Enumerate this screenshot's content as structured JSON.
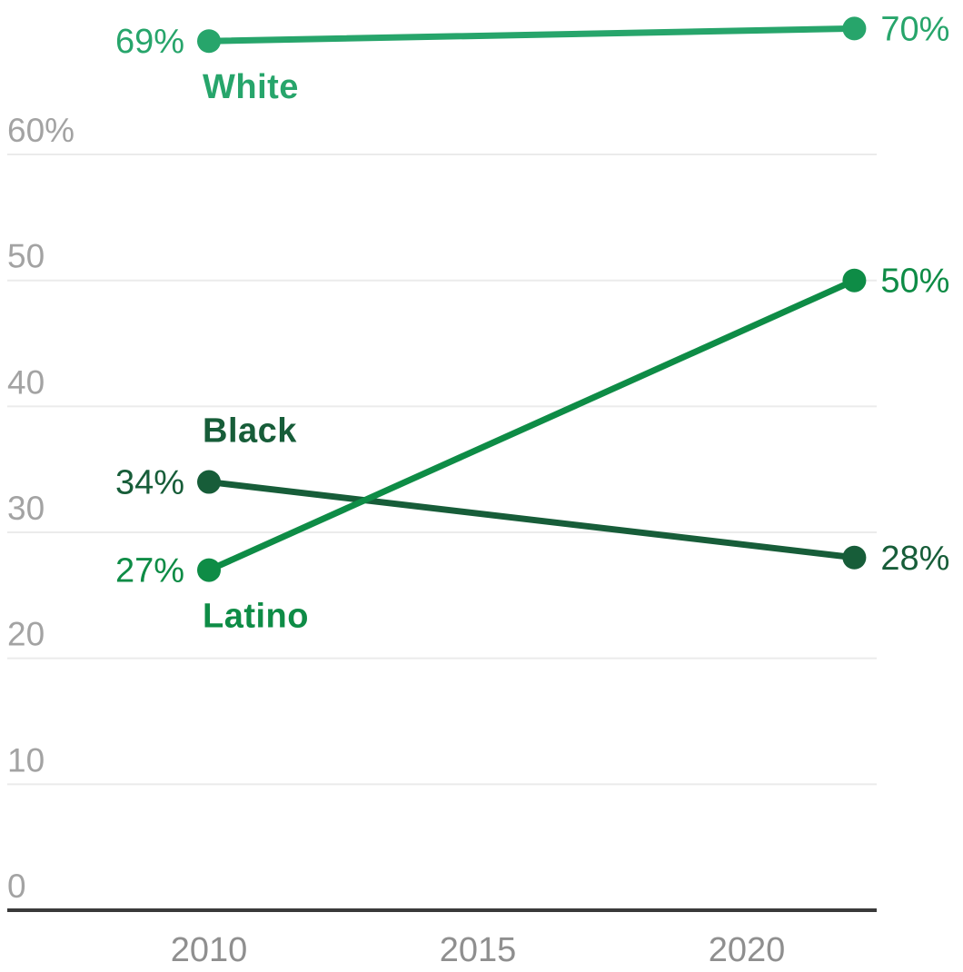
{
  "chart_data": {
    "type": "line",
    "title": "",
    "x": [
      2010,
      2022
    ],
    "x_axis": {
      "ticks": [
        {
          "value": 2010,
          "label": "2010"
        },
        {
          "value": 2015,
          "label": "2015"
        },
        {
          "value": 2020,
          "label": "2020"
        }
      ]
    },
    "y_axis": {
      "range": [
        0,
        72
      ],
      "ticks": [
        {
          "value": 60,
          "label": "60%"
        },
        {
          "value": 50,
          "label": "50"
        },
        {
          "value": 40,
          "label": "40"
        },
        {
          "value": 30,
          "label": "30"
        },
        {
          "value": 20,
          "label": "20"
        },
        {
          "value": 10,
          "label": "10"
        },
        {
          "value": 0,
          "label": "0"
        }
      ]
    },
    "series": [
      {
        "name": "White",
        "color": "#27a56b",
        "values": [
          69,
          70
        ],
        "point_labels": [
          "69%",
          "70%"
        ],
        "name_label_position": "below-start"
      },
      {
        "name": "Black",
        "color": "#175d39",
        "values": [
          34,
          28
        ],
        "point_labels": [
          "34%",
          "28%"
        ],
        "name_label_position": "above-start"
      },
      {
        "name": "Latino",
        "color": "#0e8c46",
        "values": [
          27,
          50
        ],
        "point_labels": [
          "27%",
          "50%"
        ],
        "name_label_position": "below-start"
      }
    ],
    "grid": true,
    "legend": "inline-labels",
    "colors": {
      "gridline": "#ebebeb",
      "axis_line": "#3a3a3a",
      "background": "#ffffff"
    }
  }
}
